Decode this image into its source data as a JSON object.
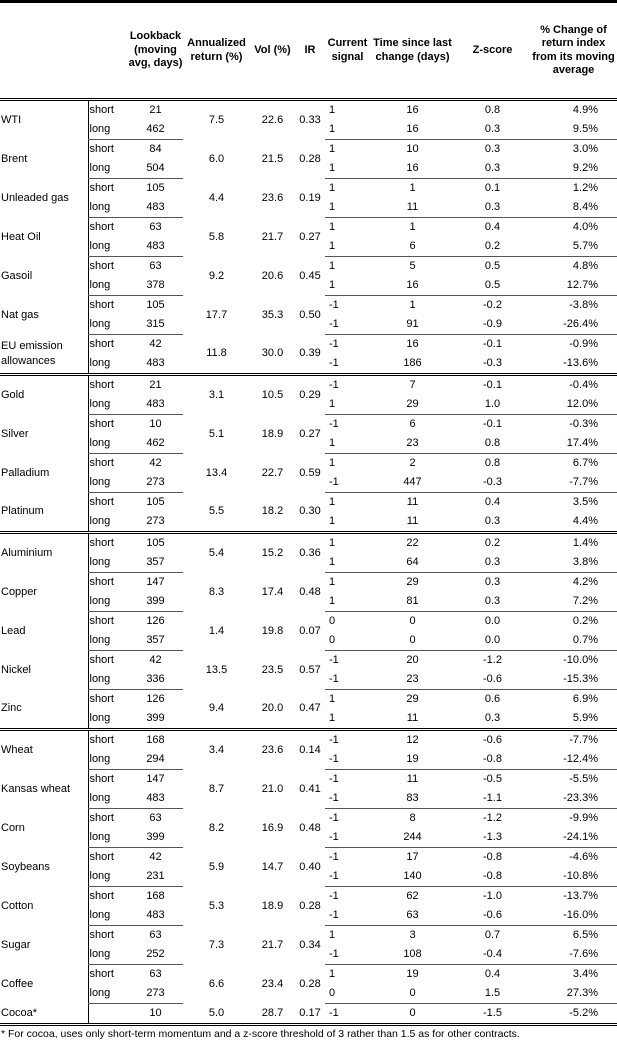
{
  "headers": {
    "name": "",
    "type": "",
    "lookback": "Lookback (moving avg, days)",
    "annualized": "Annualized return (%)",
    "vol": "Vol (%)",
    "ir": "IR",
    "signal": "Current signal",
    "time": "Time since last change (days)",
    "z": "Z-score",
    "pct": "% Change of return index from its moving average"
  },
  "sections": [
    [
      {
        "name": "WTI",
        "annualized": "7.5",
        "vol": "22.6",
        "ir": "0.33",
        "rows": [
          {
            "type": "short",
            "lookback": "21",
            "signal": "1",
            "time": "16",
            "z": "0.8",
            "pct": "4.9%"
          },
          {
            "type": "long",
            "lookback": "462",
            "signal": "1",
            "time": "16",
            "z": "0.3",
            "pct": "9.5%"
          }
        ]
      },
      {
        "name": "Brent",
        "annualized": "6.0",
        "vol": "21.5",
        "ir": "0.28",
        "rows": [
          {
            "type": "short",
            "lookback": "84",
            "signal": "1",
            "time": "10",
            "z": "0.3",
            "pct": "3.0%"
          },
          {
            "type": "long",
            "lookback": "504",
            "signal": "1",
            "time": "16",
            "z": "0.3",
            "pct": "9.2%"
          }
        ]
      },
      {
        "name": "Unleaded gas",
        "annualized": "4.4",
        "vol": "23.6",
        "ir": "0.19",
        "rows": [
          {
            "type": "short",
            "lookback": "105",
            "signal": "1",
            "time": "1",
            "z": "0.1",
            "pct": "1.2%"
          },
          {
            "type": "long",
            "lookback": "483",
            "signal": "1",
            "time": "11",
            "z": "0.3",
            "pct": "8.4%"
          }
        ]
      },
      {
        "name": "Heat Oil",
        "annualized": "5.8",
        "vol": "21.7",
        "ir": "0.27",
        "rows": [
          {
            "type": "short",
            "lookback": "63",
            "signal": "1",
            "time": "1",
            "z": "0.4",
            "pct": "4.0%"
          },
          {
            "type": "long",
            "lookback": "483",
            "signal": "1",
            "time": "6",
            "z": "0.2",
            "pct": "5.7%"
          }
        ]
      },
      {
        "name": "Gasoil",
        "annualized": "9.2",
        "vol": "20.6",
        "ir": "0.45",
        "rows": [
          {
            "type": "short",
            "lookback": "63",
            "signal": "1",
            "time": "5",
            "z": "0.5",
            "pct": "4.8%"
          },
          {
            "type": "long",
            "lookback": "378",
            "signal": "1",
            "time": "16",
            "z": "0.5",
            "pct": "12.7%"
          }
        ]
      },
      {
        "name": "Nat gas",
        "annualized": "17.7",
        "vol": "35.3",
        "ir": "0.50",
        "rows": [
          {
            "type": "short",
            "lookback": "105",
            "signal": "-1",
            "time": "1",
            "z": "-0.2",
            "pct": "-3.8%"
          },
          {
            "type": "long",
            "lookback": "315",
            "signal": "-1",
            "time": "91",
            "z": "-0.9",
            "pct": "-26.4%"
          }
        ]
      },
      {
        "name": "EU emission allowances",
        "annualized": "11.8",
        "vol": "30.0",
        "ir": "0.39",
        "rows": [
          {
            "type": "short",
            "lookback": "42",
            "signal": "-1",
            "time": "16",
            "z": "-0.1",
            "pct": "-0.9%"
          },
          {
            "type": "long",
            "lookback": "483",
            "signal": "-1",
            "time": "186",
            "z": "-0.3",
            "pct": "-13.6%"
          }
        ]
      }
    ],
    [
      {
        "name": "Gold",
        "annualized": "3.1",
        "vol": "10.5",
        "ir": "0.29",
        "rows": [
          {
            "type": "short",
            "lookback": "21",
            "signal": "-1",
            "time": "7",
            "z": "-0.1",
            "pct": "-0.4%"
          },
          {
            "type": "long",
            "lookback": "483",
            "signal": "1",
            "time": "29",
            "z": "1.0",
            "pct": "12.0%"
          }
        ]
      },
      {
        "name": "Silver",
        "annualized": "5.1",
        "vol": "18.9",
        "ir": "0.27",
        "rows": [
          {
            "type": "short",
            "lookback": "10",
            "signal": "-1",
            "time": "6",
            "z": "-0.1",
            "pct": "-0.3%"
          },
          {
            "type": "long",
            "lookback": "462",
            "signal": "1",
            "time": "23",
            "z": "0.8",
            "pct": "17.4%"
          }
        ]
      },
      {
        "name": "Palladium",
        "annualized": "13.4",
        "vol": "22.7",
        "ir": "0.59",
        "rows": [
          {
            "type": "short",
            "lookback": "42",
            "signal": "1",
            "time": "2",
            "z": "0.8",
            "pct": "6.7%"
          },
          {
            "type": "long",
            "lookback": "273",
            "signal": "-1",
            "time": "447",
            "z": "-0.3",
            "pct": "-7.7%"
          }
        ]
      },
      {
        "name": "Platinum",
        "annualized": "5.5",
        "vol": "18.2",
        "ir": "0.30",
        "rows": [
          {
            "type": "short",
            "lookback": "105",
            "signal": "1",
            "time": "11",
            "z": "0.4",
            "pct": "3.5%"
          },
          {
            "type": "long",
            "lookback": "273",
            "signal": "1",
            "time": "11",
            "z": "0.3",
            "pct": "4.4%"
          }
        ]
      }
    ],
    [
      {
        "name": "Aluminium",
        "annualized": "5.4",
        "vol": "15.2",
        "ir": "0.36",
        "rows": [
          {
            "type": "short",
            "lookback": "105",
            "signal": "1",
            "time": "22",
            "z": "0.2",
            "pct": "1.4%"
          },
          {
            "type": "long",
            "lookback": "357",
            "signal": "1",
            "time": "64",
            "z": "0.3",
            "pct": "3.8%"
          }
        ]
      },
      {
        "name": "Copper",
        "annualized": "8.3",
        "vol": "17.4",
        "ir": "0.48",
        "rows": [
          {
            "type": "short",
            "lookback": "147",
            "signal": "1",
            "time": "29",
            "z": "0.3",
            "pct": "4.2%"
          },
          {
            "type": "long",
            "lookback": "399",
            "signal": "1",
            "time": "81",
            "z": "0.3",
            "pct": "7.2%"
          }
        ]
      },
      {
        "name": "Lead",
        "annualized": "1.4",
        "vol": "19.8",
        "ir": "0.07",
        "rows": [
          {
            "type": "short",
            "lookback": "126",
            "signal": "0",
            "time": "0",
            "z": "0.0",
            "pct": "0.2%"
          },
          {
            "type": "long",
            "lookback": "357",
            "signal": "0",
            "time": "0",
            "z": "0.0",
            "pct": "0.7%"
          }
        ]
      },
      {
        "name": "Nickel",
        "annualized": "13.5",
        "vol": "23.5",
        "ir": "0.57",
        "rows": [
          {
            "type": "short",
            "lookback": "42",
            "signal": "-1",
            "time": "20",
            "z": "-1.2",
            "pct": "-10.0%"
          },
          {
            "type": "long",
            "lookback": "336",
            "signal": "-1",
            "time": "23",
            "z": "-0.6",
            "pct": "-15.3%"
          }
        ]
      },
      {
        "name": "Zinc",
        "annualized": "9.4",
        "vol": "20.0",
        "ir": "0.47",
        "rows": [
          {
            "type": "short",
            "lookback": "126",
            "signal": "1",
            "time": "29",
            "z": "0.6",
            "pct": "6.9%"
          },
          {
            "type": "long",
            "lookback": "399",
            "signal": "1",
            "time": "11",
            "z": "0.3",
            "pct": "5.9%"
          }
        ]
      }
    ],
    [
      {
        "name": "Wheat",
        "annualized": "3.4",
        "vol": "23.6",
        "ir": "0.14",
        "rows": [
          {
            "type": "short",
            "lookback": "168",
            "signal": "-1",
            "time": "12",
            "z": "-0.6",
            "pct": "-7.7%"
          },
          {
            "type": "long",
            "lookback": "294",
            "signal": "-1",
            "time": "19",
            "z": "-0.8",
            "pct": "-12.4%"
          }
        ]
      },
      {
        "name": "Kansas wheat",
        "annualized": "8.7",
        "vol": "21.0",
        "ir": "0.41",
        "rows": [
          {
            "type": "short",
            "lookback": "147",
            "signal": "-1",
            "time": "11",
            "z": "-0.5",
            "pct": "-5.5%"
          },
          {
            "type": "long",
            "lookback": "483",
            "signal": "-1",
            "time": "83",
            "z": "-1.1",
            "pct": "-23.3%"
          }
        ]
      },
      {
        "name": "Corn",
        "annualized": "8.2",
        "vol": "16.9",
        "ir": "0.48",
        "rows": [
          {
            "type": "short",
            "lookback": "63",
            "signal": "-1",
            "time": "8",
            "z": "-1.2",
            "pct": "-9.9%"
          },
          {
            "type": "long",
            "lookback": "399",
            "signal": "-1",
            "time": "244",
            "z": "-1.3",
            "pct": "-24.1%"
          }
        ]
      },
      {
        "name": "Soybeans",
        "annualized": "5.9",
        "vol": "14.7",
        "ir": "0.40",
        "rows": [
          {
            "type": "short",
            "lookback": "42",
            "signal": "-1",
            "time": "17",
            "z": "-0.8",
            "pct": "-4.6%"
          },
          {
            "type": "long",
            "lookback": "231",
            "signal": "-1",
            "time": "140",
            "z": "-0.8",
            "pct": "-10.8%"
          }
        ]
      },
      {
        "name": "Cotton",
        "annualized": "5.3",
        "vol": "18.9",
        "ir": "0.28",
        "rows": [
          {
            "type": "short",
            "lookback": "168",
            "signal": "-1",
            "time": "62",
            "z": "-1.0",
            "pct": "-13.7%"
          },
          {
            "type": "long",
            "lookback": "483",
            "signal": "-1",
            "time": "63",
            "z": "-0.6",
            "pct": "-16.0%"
          }
        ]
      },
      {
        "name": "Sugar",
        "annualized": "7.3",
        "vol": "21.7",
        "ir": "0.34",
        "rows": [
          {
            "type": "short",
            "lookback": "63",
            "signal": "1",
            "time": "3",
            "z": "0.7",
            "pct": "6.5%"
          },
          {
            "type": "long",
            "lookback": "252",
            "signal": "-1",
            "time": "108",
            "z": "-0.4",
            "pct": "-7.6%"
          }
        ]
      },
      {
        "name": "Coffee",
        "annualized": "6.6",
        "vol": "23.4",
        "ir": "0.28",
        "rows": [
          {
            "type": "short",
            "lookback": "63",
            "signal": "1",
            "time": "19",
            "z": "0.4",
            "pct": "3.4%"
          },
          {
            "type": "long",
            "lookback": "273",
            "signal": "0",
            "time": "0",
            "z": "1.5",
            "pct": "27.3%"
          }
        ]
      },
      {
        "name": "Cocoa*",
        "annualized": "5.0",
        "vol": "28.7",
        "ir": "0.17",
        "rows": [
          {
            "type": "",
            "lookback": "10",
            "signal": "-1",
            "time": "0",
            "z": "-1.5",
            "pct": "-5.2%"
          }
        ]
      }
    ]
  ],
  "footnote": "* For cocoa, uses only short-term momentum and a z-score threshold of 3 rather than 1.5 as for other contracts."
}
